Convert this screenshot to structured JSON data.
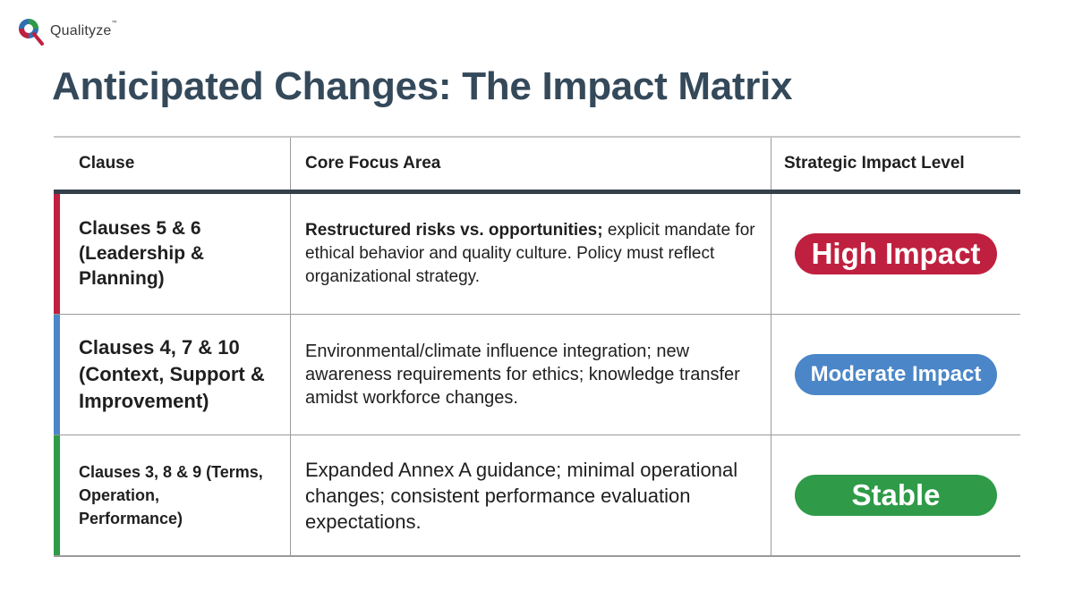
{
  "brand": {
    "name": "Qualityze",
    "trademark": "™"
  },
  "page_title": "Anticipated Changes: The Impact Matrix",
  "colors": {
    "title": "#34495a",
    "high": "#c0203f",
    "moderate": "#4a86c8",
    "stable": "#2f9a48"
  },
  "table": {
    "headers": {
      "clause": "Clause",
      "focus": "Core Focus Area",
      "impact": "Strategic Impact Level"
    },
    "rows": [
      {
        "clause": "Clauses 5 & 6 (Leadership & Planning)",
        "focus_bold": "Restructured risks vs. opportunities;",
        "focus_rest": " explicit mandate for ethical behavior and quality culture. Policy must reflect organizational strategy.",
        "impact": "High Impact"
      },
      {
        "clause": "Clauses 4, 7 & 10 (Context, Support & Improvement)",
        "focus_rest": "Environmental/climate influence integration; new awareness requirements for ethics; knowledge transfer amidst workforce changes.",
        "impact": "Moderate Impact"
      },
      {
        "clause": "Clauses 3, 8 & 9 (Terms, Operation, Performance)",
        "focus_rest": "Expanded Annex A guidance; minimal operational changes; consistent performance evaluation expectations.",
        "impact": "Stable"
      }
    ]
  }
}
